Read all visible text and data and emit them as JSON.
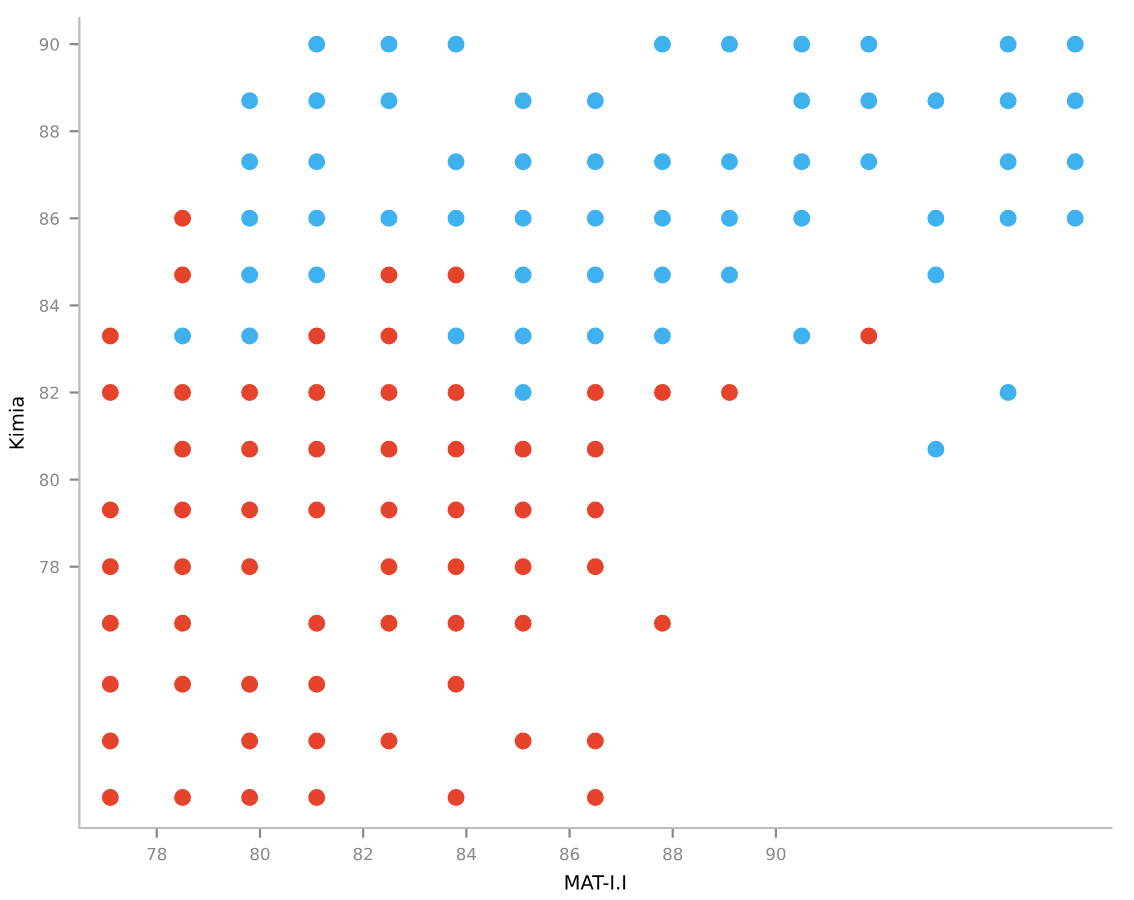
{
  "chart_data": {
    "type": "scatter",
    "xlabel": "MAT-I.I",
    "ylabel": "Kimia",
    "xlim": [
      76.5,
      96.5
    ],
    "ylim": [
      72,
      90.6
    ],
    "xticks": [
      78,
      80,
      82,
      84,
      86,
      88,
      90
    ],
    "yticks": [
      78,
      80,
      82,
      84,
      86,
      88,
      90
    ],
    "grid": false,
    "marker": "circle",
    "series": [
      {
        "color": "#3eb1ee",
        "x": [
          81.1,
          82.5,
          83.8,
          87.8,
          89.1,
          90.5,
          91.8,
          94.5,
          95.8,
          79.8,
          81.1,
          82.5,
          85.1,
          86.5,
          90.5,
          91.8,
          93.1,
          94.5,
          95.8,
          79.8,
          81.1,
          83.8,
          85.1,
          86.5,
          87.8,
          89.1,
          90.5,
          91.8,
          94.5,
          95.8,
          79.8,
          81.1,
          82.5,
          83.8,
          85.1,
          86.5,
          87.8,
          89.1,
          90.5,
          93.1,
          94.5,
          95.8,
          79.8,
          81.1,
          85.1,
          86.5,
          87.8,
          89.1,
          93.1,
          78.5,
          79.8,
          83.8,
          85.1,
          86.5,
          87.8,
          90.5,
          85.1,
          94.5,
          93.1
        ],
        "values": [
          90,
          90,
          90,
          90,
          90,
          90,
          90,
          90,
          90,
          88.7,
          88.7,
          88.7,
          88.7,
          88.7,
          88.7,
          88.7,
          88.7,
          88.7,
          88.7,
          87.3,
          87.3,
          87.3,
          87.3,
          87.3,
          87.3,
          87.3,
          87.3,
          87.3,
          87.3,
          87.3,
          86,
          86,
          86,
          86,
          86,
          86,
          86,
          86,
          86,
          86,
          86,
          86,
          84.7,
          84.7,
          84.7,
          84.7,
          84.7,
          84.7,
          84.7,
          83.3,
          83.3,
          83.3,
          83.3,
          83.3,
          83.3,
          83.3,
          82,
          82,
          80.7
        ]
      },
      {
        "color": "#e5432b",
        "x": [
          78.5,
          78.5,
          82.5,
          83.8,
          77.1,
          81.1,
          82.5,
          91.8,
          77.1,
          78.5,
          79.8,
          81.1,
          82.5,
          83.8,
          86.5,
          87.8,
          89.1,
          78.5,
          79.8,
          81.1,
          82.5,
          83.8,
          85.1,
          86.5,
          77.1,
          78.5,
          79.8,
          81.1,
          82.5,
          83.8,
          85.1,
          86.5,
          77.1,
          78.5,
          79.8,
          82.5,
          83.8,
          85.1,
          86.5,
          77.1,
          78.5,
          81.1,
          82.5,
          83.8,
          85.1,
          87.8,
          77.1,
          78.5,
          79.8,
          81.1,
          83.8,
          77.1,
          79.8,
          81.1,
          82.5,
          85.1,
          86.5,
          77.1,
          78.5,
          79.8,
          81.1,
          83.8,
          86.5
        ],
        "values": [
          86,
          84.7,
          84.7,
          84.7,
          83.3,
          83.3,
          83.3,
          83.3,
          82,
          82,
          82,
          82,
          82,
          82,
          82,
          82,
          82,
          80.7,
          80.7,
          80.7,
          80.7,
          80.7,
          80.7,
          80.7,
          79.3,
          79.3,
          79.3,
          79.3,
          79.3,
          79.3,
          79.3,
          79.3,
          78,
          78,
          78,
          78,
          78,
          78,
          78,
          76.7,
          76.7,
          76.7,
          76.7,
          76.7,
          76.7,
          76.7,
          75.3,
          75.3,
          75.3,
          75.3,
          75.3,
          74,
          74,
          74,
          74,
          74,
          74,
          72.7,
          72.7,
          72.7,
          72.7,
          72.7,
          72.7
        ]
      }
    ]
  }
}
